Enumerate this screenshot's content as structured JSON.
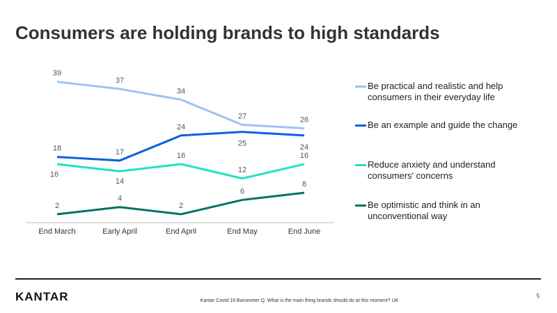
{
  "title": "Consumers are holding brands to high standards",
  "chart_data": {
    "type": "line",
    "categories": [
      "End March",
      "Early April",
      "End April",
      "End May",
      "End June"
    ],
    "ylim": [
      0,
      43
    ],
    "series": [
      {
        "name": "Be practical and realistic and help consumers in their everyday life",
        "color": "#9dc3f5",
        "values": [
          39,
          37,
          34,
          27,
          26
        ]
      },
      {
        "name": "Be an example and guide the change",
        "color": "#0b5fe0",
        "values": [
          18,
          17,
          24,
          25,
          24
        ]
      },
      {
        "name": "Reduce anxiety and understand consumers' concerns",
        "color": "#1fe3c2",
        "values": [
          16,
          14,
          16,
          12,
          16
        ]
      },
      {
        "name": "Be optimistic and think in an unconventional way",
        "color": "#007261",
        "values": [
          2,
          4,
          2,
          6,
          8
        ]
      }
    ]
  },
  "footer": {
    "logo": "KANTAR",
    "source": "Kantar Covid 19 Barometer Q. What is the main thing brands should do at this moment? UK",
    "page": "5"
  }
}
